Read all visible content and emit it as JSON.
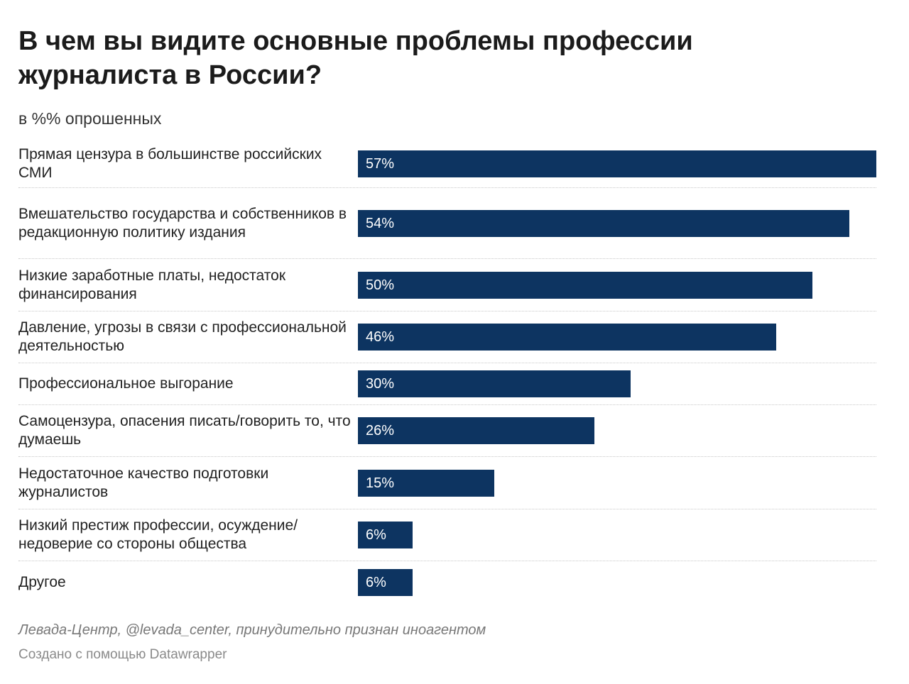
{
  "chart_data": {
    "type": "bar",
    "orientation": "horizontal",
    "title": "В чем вы видите основные проблемы профессии журналиста в России?",
    "subtitle": "в %% опрошенных",
    "categories": [
      "Прямая цензура в большинстве российских СМИ",
      "Вмешательство государства и собственников в редакционную политику издания",
      "Низкие заработные платы, недостаток финансирования",
      "Давление, угрозы в связи с профессиональной деятельностью",
      "Профессиональное выгорание",
      "Самоцензура, опасения писать/говорить то, что думаешь",
      "Недостаточное качество подготовки журналистов",
      "Низкий престиж профессии, осуждение/недоверие со стороны общества",
      "Другое"
    ],
    "values": [
      57,
      54,
      50,
      46,
      30,
      26,
      15,
      6,
      6
    ],
    "value_labels": [
      "57%",
      "54%",
      "50%",
      "46%",
      "30%",
      "26%",
      "15%",
      "6%",
      "6%"
    ],
    "xlim": [
      0,
      57
    ],
    "bar_color": "#0d3461",
    "grid": false
  },
  "footer": {
    "source": "Левада-Центр, @levada_center, принудительно признан иноагентом",
    "credit": "Создано с помощью Datawrapper"
  }
}
